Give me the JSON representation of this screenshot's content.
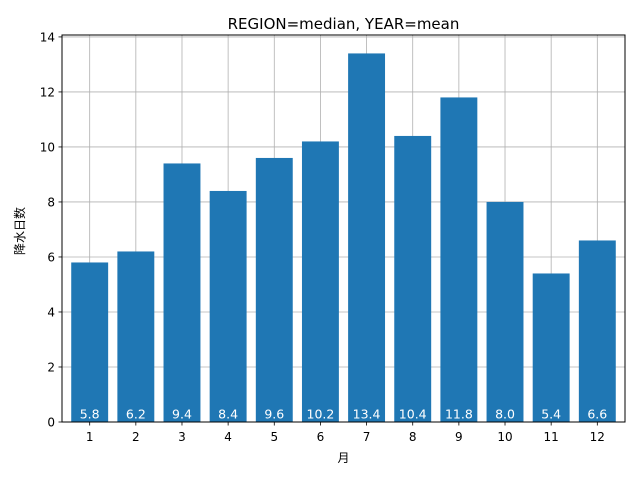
{
  "chart_data": {
    "type": "bar",
    "title": "REGION=median, YEAR=mean",
    "xlabel": "月",
    "ylabel": "降水日数",
    "categories": [
      "1",
      "2",
      "3",
      "4",
      "5",
      "6",
      "7",
      "8",
      "9",
      "10",
      "11",
      "12"
    ],
    "values": [
      5.8,
      6.2,
      9.4,
      8.4,
      9.6,
      10.2,
      13.4,
      10.4,
      11.8,
      8.0,
      5.4,
      6.6
    ],
    "data_labels": [
      "5.8",
      "6.2",
      "9.4",
      "8.4",
      "9.6",
      "10.2",
      "13.4",
      "10.4",
      "11.8",
      "8.0",
      "5.4",
      "6.6"
    ],
    "yticks": [
      0,
      2,
      4,
      6,
      8,
      10,
      12,
      14
    ],
    "ylim": [
      0,
      14.07
    ],
    "grid": true,
    "bar_color": "#1f77b4",
    "grid_color": "#b0b0b0"
  }
}
